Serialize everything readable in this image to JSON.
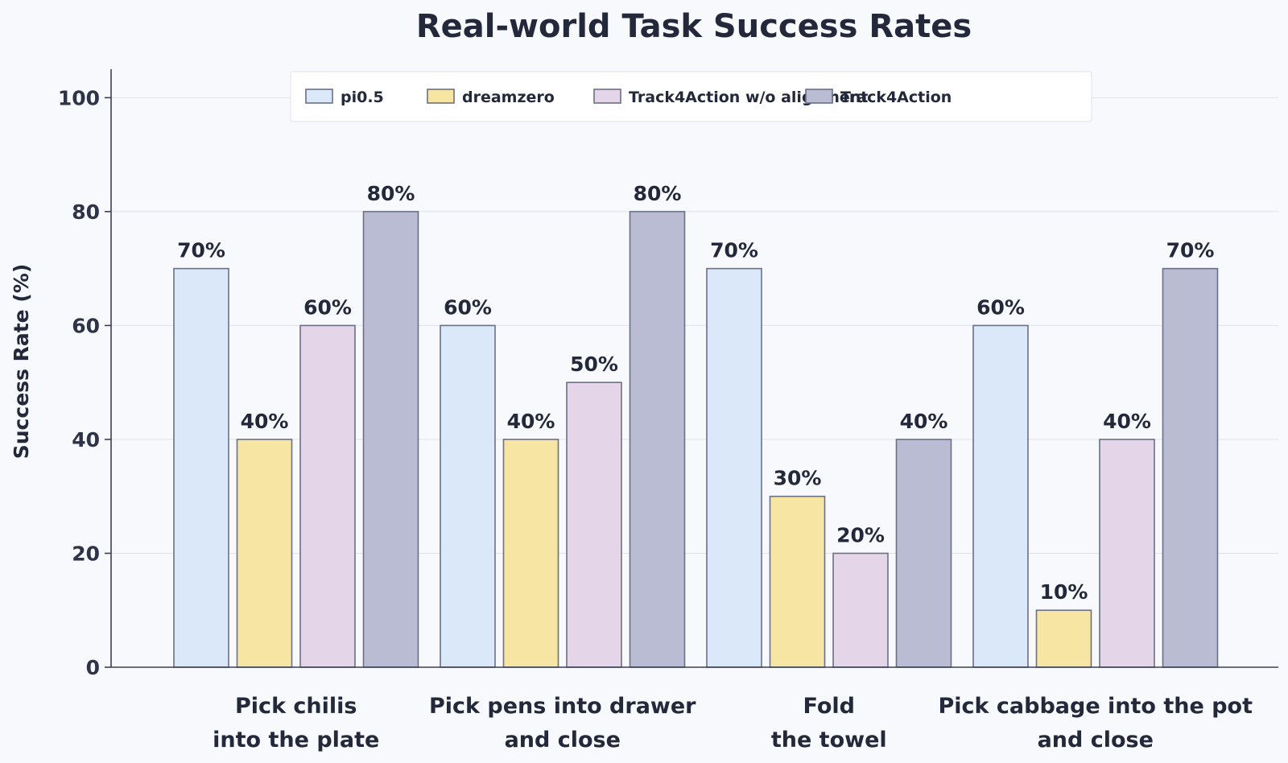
{
  "chart_data": {
    "type": "bar",
    "title": "Real-world Task Success Rates",
    "xlabel": "",
    "ylabel": "Success Rate (%)",
    "ylim": [
      0,
      105
    ],
    "yticks": [
      0,
      20,
      40,
      60,
      80,
      100
    ],
    "grid": "horizontal",
    "legend": "top-center",
    "categories": [
      [
        "Pick chilis",
        "into the plate"
      ],
      [
        "Pick pens into drawer",
        "and close"
      ],
      [
        "Fold",
        "the towel"
      ],
      [
        "Pick cabbage into the pot",
        "and close"
      ]
    ],
    "series": [
      {
        "name": "pi0.5",
        "color": "#dae8fa",
        "values": [
          70,
          60,
          70,
          60
        ]
      },
      {
        "name": "dreamzero",
        "color": "#f7e6a3",
        "values": [
          40,
          40,
          30,
          10
        ]
      },
      {
        "name": "Track4Action w/o alignment",
        "color": "#e4d6e8",
        "values": [
          60,
          50,
          20,
          40
        ]
      },
      {
        "name": "Track4Action",
        "color": "#b9bcd3",
        "values": [
          80,
          80,
          40,
          70
        ]
      }
    ],
    "value_suffix": "%"
  }
}
